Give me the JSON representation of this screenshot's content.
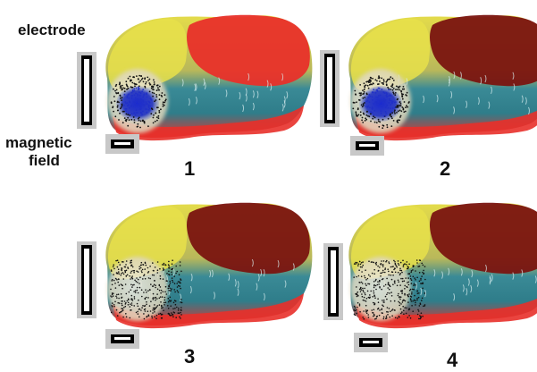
{
  "labels": {
    "electrode": "electrode",
    "magnetic_line1": "magnetic",
    "magnetic_line2": "field"
  },
  "panels": [
    {
      "number": "1",
      "particle_cluster": "concentrated blue core"
    },
    {
      "number": "2",
      "particle_cluster": "concentrated blue core"
    },
    {
      "number": "3",
      "particle_cluster": "dispersed black particles"
    },
    {
      "number": "4",
      "particle_cluster": "dispersed black particles"
    }
  ],
  "colors": {
    "tissue_yellow": "#e8e04a",
    "tissue_teal": "#3a8a96",
    "tissue_red": "#e8302a",
    "tumor_dark_red": "#7a1410",
    "particle_blue": "#2030c8",
    "particle_black": "#111111",
    "electrode_frame": "#c8c8c8",
    "electrode_bar": "#000000"
  }
}
